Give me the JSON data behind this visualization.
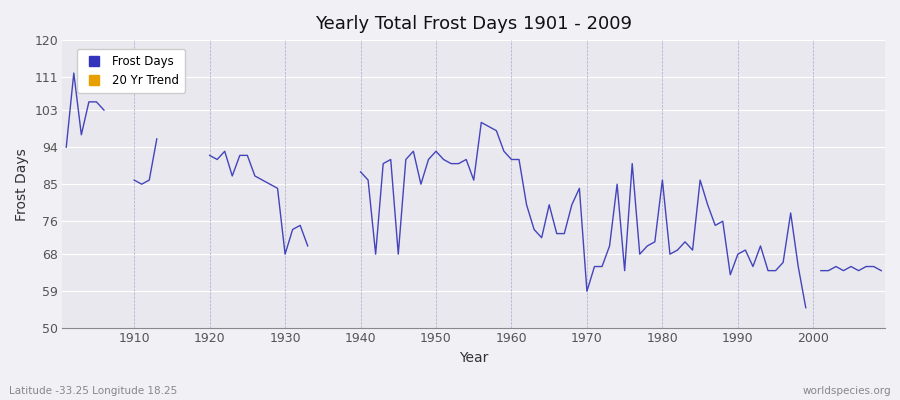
{
  "title": "Yearly Total Frost Days 1901 - 2009",
  "xlabel": "Year",
  "ylabel": "Frost Days",
  "subtitle_left": "Latitude -33.25 Longitude 18.25",
  "subtitle_right": "worldspecies.org",
  "legend_entries": [
    "Frost Days",
    "20 Yr Trend"
  ],
  "legend_colors": [
    "#3333bb",
    "#e8a000"
  ],
  "ylim": [
    50,
    120
  ],
  "yticks": [
    50,
    59,
    68,
    76,
    85,
    94,
    103,
    111,
    120
  ],
  "xlim": [
    1900.5,
    2009.5
  ],
  "xticks": [
    1910,
    1920,
    1930,
    1940,
    1950,
    1960,
    1970,
    1980,
    1990,
    2000
  ],
  "line_color": "#4444bb",
  "bg_color": "#e8e8ee",
  "fig_color": "#f0f0f5",
  "years": [
    1901,
    1902,
    1903,
    1904,
    1905,
    1906,
    1907,
    1908,
    1909,
    1910,
    1911,
    1912,
    1913,
    1914,
    1915,
    1916,
    1917,
    1918,
    1919,
    1920,
    1921,
    1922,
    1923,
    1924,
    1925,
    1926,
    1927,
    1928,
    1929,
    1930,
    1931,
    1932,
    1933,
    1934,
    1935,
    1936,
    1937,
    1938,
    1939,
    1940,
    1941,
    1942,
    1943,
    1944,
    1945,
    1946,
    1947,
    1948,
    1949,
    1950,
    1951,
    1952,
    1953,
    1954,
    1955,
    1956,
    1957,
    1958,
    1959,
    1960,
    1961,
    1962,
    1963,
    1964,
    1965,
    1966,
    1967,
    1968,
    1969,
    1970,
    1971,
    1972,
    1973,
    1974,
    1975,
    1976,
    1977,
    1978,
    1979,
    1980,
    1981,
    1982,
    1983,
    1984,
    1985,
    1986,
    1987,
    1988,
    1989,
    1990,
    1991,
    1992,
    1993,
    1994,
    1995,
    1996,
    1997,
    1998,
    1999,
    2000,
    2001,
    2002,
    2003,
    2004,
    2005,
    2006,
    2007,
    2008,
    2009
  ],
  "frost_days": [
    94,
    112,
    97,
    105,
    105,
    103,
    null,
    null,
    null,
    86,
    85,
    86,
    96,
    null,
    null,
    null,
    null,
    null,
    null,
    92,
    91,
    93,
    87,
    92,
    92,
    87,
    86,
    85,
    84,
    68,
    74,
    75,
    70,
    null,
    null,
    null,
    null,
    null,
    null,
    88,
    86,
    68,
    90,
    91,
    68,
    91,
    93,
    85,
    91,
    93,
    91,
    90,
    90,
    91,
    86,
    100,
    99,
    98,
    93,
    91,
    91,
    80,
    74,
    72,
    80,
    73,
    73,
    80,
    84,
    59,
    65,
    65,
    70,
    85,
    64,
    90,
    68,
    70,
    71,
    86,
    68,
    69,
    71,
    69,
    86,
    80,
    75,
    76,
    63,
    68,
    69,
    65,
    70,
    64,
    64,
    66,
    78,
    65,
    55,
    null,
    64,
    64,
    65,
    64,
    65,
    64,
    65,
    65,
    64
  ]
}
